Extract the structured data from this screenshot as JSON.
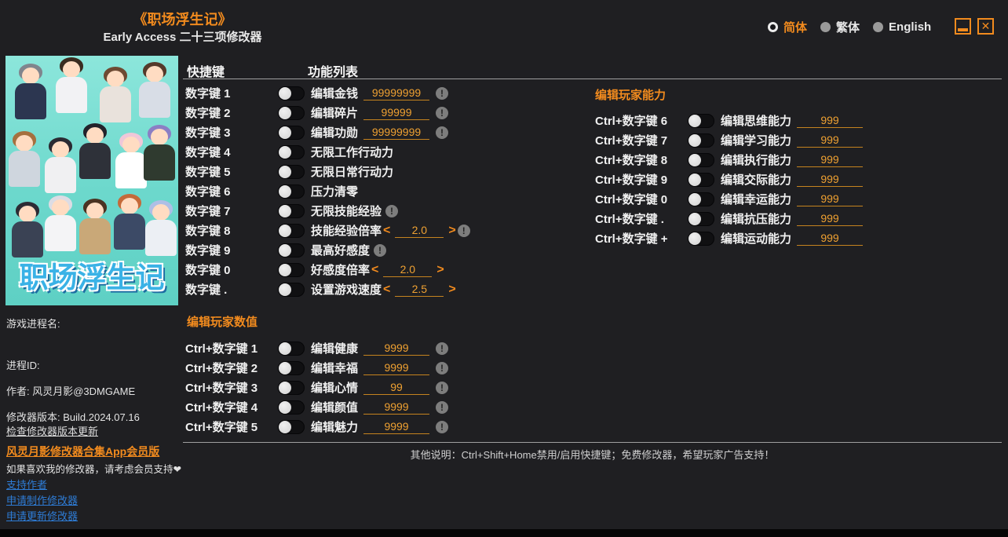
{
  "header": {
    "title": "《职场浮生记》",
    "subtitle": "Early Access 二十三项修改器",
    "languages": [
      {
        "label": "简体",
        "selected": true
      },
      {
        "label": "繁体",
        "selected": false
      },
      {
        "label": "English",
        "selected": false
      }
    ]
  },
  "cover": {
    "logo": "职场浮生记"
  },
  "sidebar": {
    "process_name_label": "游戏进程名:",
    "process_id_label": "进程ID:",
    "author": "作者: 风灵月影@3DMGAME",
    "version": "修改器版本: Build.2024.07.16",
    "check_update_link": "检查修改器版本更新",
    "membership_link": "风灵月影修改器合集App会员版",
    "support_note": "如果喜欢我的修改器，请考虑会员支持❤",
    "support_author_link": "支持作者",
    "request_make_link": "申请制作修改器",
    "request_update_link": "申请更新修改器"
  },
  "main": {
    "hotkey_header": "快捷键",
    "function_header": "功能列表",
    "rows": [
      {
        "hotkey": "数字键 1",
        "label": "编辑金钱",
        "control": "input",
        "value": "99999999",
        "warn": true
      },
      {
        "hotkey": "数字键 2",
        "label": "编辑碎片",
        "control": "input",
        "value": "99999",
        "warn": true
      },
      {
        "hotkey": "数字键 3",
        "label": "编辑功勋",
        "control": "input",
        "value": "99999999",
        "warn": true
      },
      {
        "hotkey": "数字键 4",
        "label": "无限工作行动力",
        "control": "none",
        "warn": false
      },
      {
        "hotkey": "数字键 5",
        "label": "无限日常行动力",
        "control": "none",
        "warn": false
      },
      {
        "hotkey": "数字键 6",
        "label": "压力清零",
        "control": "none",
        "warn": false
      },
      {
        "hotkey": "数字键 7",
        "label": "无限技能经验",
        "control": "none",
        "warn": true
      },
      {
        "hotkey": "数字键 8",
        "label": "技能经验倍率",
        "control": "stepper",
        "value": "2.0",
        "warn": true
      },
      {
        "hotkey": "数字键 9",
        "label": "最高好感度",
        "control": "none",
        "warn": true
      },
      {
        "hotkey": "数字键 0",
        "label": "好感度倍率",
        "control": "stepper",
        "value": "2.0",
        "warn": false
      },
      {
        "hotkey": "数字键 .",
        "label": "设置游戏速度",
        "control": "stepper",
        "value": "2.5",
        "warn": false
      }
    ],
    "player_stats": {
      "title": "编辑玩家数值",
      "rows": [
        {
          "hotkey": "Ctrl+数字键 1",
          "label": "编辑健康",
          "control": "input",
          "value": "9999",
          "warn": true
        },
        {
          "hotkey": "Ctrl+数字键 2",
          "label": "编辑幸福",
          "control": "input",
          "value": "9999",
          "warn": true
        },
        {
          "hotkey": "Ctrl+数字键 3",
          "label": "编辑心情",
          "control": "input",
          "value": "99",
          "warn": true
        },
        {
          "hotkey": "Ctrl+数字键 4",
          "label": "编辑颜值",
          "control": "input",
          "value": "9999",
          "warn": true
        },
        {
          "hotkey": "Ctrl+数字键 5",
          "label": "编辑魅力",
          "control": "input",
          "value": "9999",
          "warn": true
        }
      ]
    },
    "player_ability": {
      "title": "编辑玩家能力",
      "rows": [
        {
          "hotkey": "Ctrl+数字键 6",
          "label": "编辑思维能力",
          "control": "input",
          "value": "999",
          "warn": false
        },
        {
          "hotkey": "Ctrl+数字键 7",
          "label": "编辑学习能力",
          "control": "input",
          "value": "999",
          "warn": false
        },
        {
          "hotkey": "Ctrl+数字键 8",
          "label": "编辑执行能力",
          "control": "input",
          "value": "999",
          "warn": false
        },
        {
          "hotkey": "Ctrl+数字键 9",
          "label": "编辑交际能力",
          "control": "input",
          "value": "999",
          "warn": false
        },
        {
          "hotkey": "Ctrl+数字键 0",
          "label": "编辑幸运能力",
          "control": "input",
          "value": "999",
          "warn": false
        },
        {
          "hotkey": "Ctrl+数字键 .",
          "label": "编辑抗压能力",
          "control": "input",
          "value": "999",
          "warn": false
        },
        {
          "hotkey": "Ctrl+数字键 +",
          "label": "编辑运动能力",
          "control": "input",
          "value": "999",
          "warn": false
        }
      ]
    }
  },
  "footer": {
    "note": "其他说明：Ctrl+Shift+Home禁用/启用快捷键；免费修改器，希望玩家广告支持！"
  },
  "icons": {
    "warning": "!",
    "stepper_decrease": "<",
    "stepper_increase": ">",
    "close": "✕"
  },
  "colors": {
    "accent_orange": "#f28b1e",
    "value_orange": "#efa132",
    "link_blue": "#2e7cd6",
    "background": "#1f1f22"
  }
}
